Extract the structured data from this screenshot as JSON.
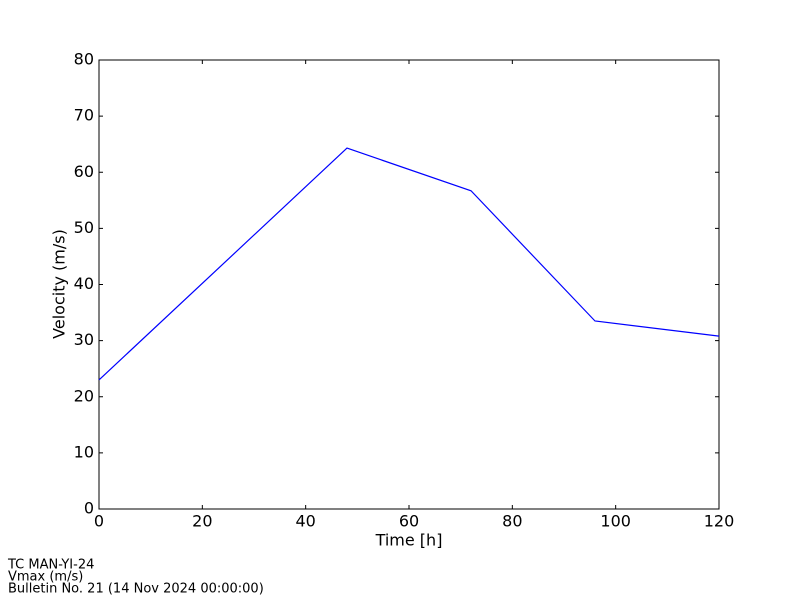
{
  "chart_data": {
    "type": "line",
    "xlabel": "Time [h]",
    "ylabel": "Velocity (m/s)",
    "x": [
      0,
      48,
      72,
      96,
      120
    ],
    "series": [
      {
        "name": "Vmax (m/s)",
        "color": "#0000ff",
        "values": [
          23,
          64.3,
          56.7,
          33.5,
          30.8
        ]
      }
    ],
    "xlim": [
      0,
      120
    ],
    "xticks": [
      0,
      20,
      40,
      60,
      80,
      100,
      120
    ],
    "ylim": [
      0,
      80
    ],
    "yticks": [
      0,
      10,
      20,
      30,
      40,
      50,
      60,
      70,
      80
    ],
    "grid": false,
    "footer": [
      "TC MAN-YI-24",
      "Vmax (m/s)",
      "Bulletin No. 21 (14 Nov 2024  00:00:00)"
    ]
  }
}
